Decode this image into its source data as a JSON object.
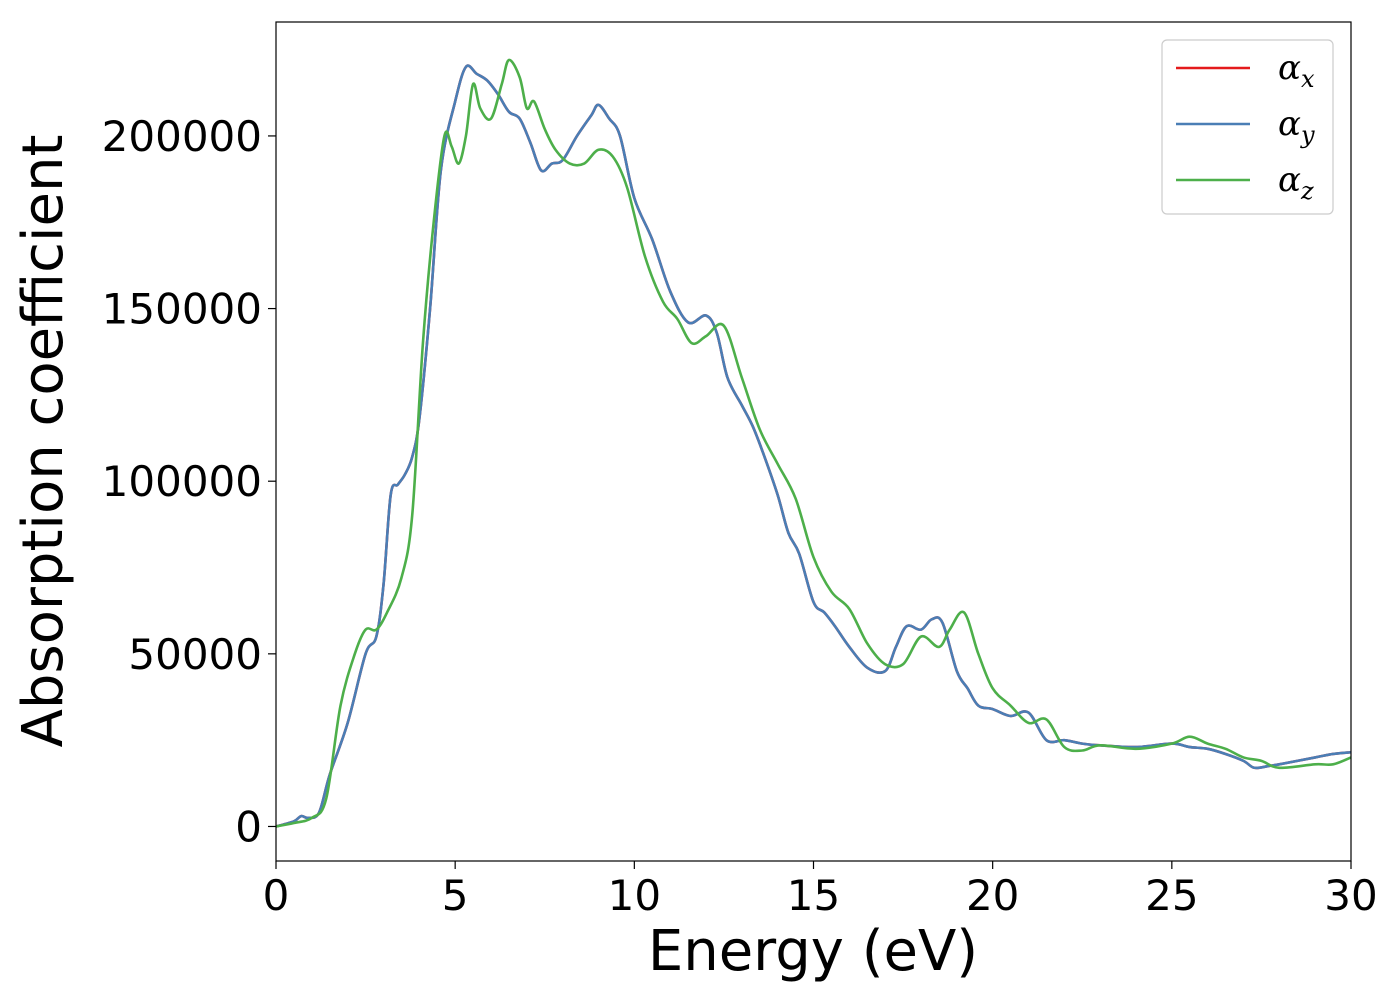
{
  "chart_data": {
    "type": "line",
    "title": "",
    "xlabel": "Energy (eV)",
    "ylabel": "Absorption coefficient",
    "xlim": [
      0,
      30
    ],
    "ylim": [
      -10000,
      233000
    ],
    "xticks": [
      0,
      5,
      10,
      15,
      20,
      25,
      30
    ],
    "yticks": [
      0,
      50000,
      100000,
      150000,
      200000
    ],
    "grid": false,
    "legend_position": "top-right",
    "series": [
      {
        "name": "α",
        "subscript": "x",
        "color": "#e41a1c",
        "x": [
          0,
          0.5,
          0.7,
          0.9,
          1.2,
          1.5,
          2.0,
          2.5,
          2.8,
          3.0,
          3.2,
          3.4,
          3.6,
          3.8,
          4.0,
          4.3,
          4.6,
          5.0,
          5.3,
          5.6,
          5.9,
          6.2,
          6.5,
          6.8,
          7.1,
          7.4,
          7.7,
          8.0,
          8.4,
          8.8,
          9.0,
          9.3,
          9.6,
          10.0,
          10.5,
          11.0,
          11.5,
          12.0,
          12.3,
          12.6,
          13.0,
          13.3,
          13.6,
          14.0,
          14.3,
          14.6,
          15.0,
          15.3,
          15.6,
          16.0,
          16.5,
          17.0,
          17.3,
          17.6,
          18.0,
          18.3,
          18.6,
          19.0,
          19.3,
          19.6,
          20.0,
          20.5,
          21.0,
          21.5,
          22.0,
          22.5,
          23.0,
          24.0,
          25.0,
          25.5,
          26.0,
          26.5,
          27.0,
          27.3,
          27.7,
          28.0,
          29.0,
          29.5,
          30.0
        ],
        "values": [
          0,
          1500,
          3000,
          2500,
          4000,
          15000,
          30000,
          50000,
          55000,
          70000,
          96000,
          99000,
          102000,
          107000,
          118000,
          150000,
          190000,
          210000,
          220000,
          218000,
          216000,
          212000,
          207000,
          205000,
          198000,
          190000,
          192000,
          193000,
          200000,
          206000,
          209000,
          205000,
          200000,
          182000,
          170000,
          155000,
          146000,
          148000,
          143000,
          130000,
          122000,
          116000,
          108000,
          96000,
          85000,
          79000,
          65000,
          62000,
          58000,
          52000,
          46000,
          45000,
          52000,
          58000,
          57000,
          60000,
          59000,
          45000,
          40000,
          35000,
          34000,
          32000,
          33000,
          25000,
          25000,
          24000,
          23500,
          23000,
          24000,
          23000,
          22500,
          21000,
          19000,
          17000,
          17500,
          18000,
          20000,
          21000,
          21500
        ]
      },
      {
        "name": "α",
        "subscript": "y",
        "color": "#4a7eb5",
        "x": [
          0,
          0.5,
          0.7,
          0.9,
          1.2,
          1.5,
          2.0,
          2.5,
          2.8,
          3.0,
          3.2,
          3.4,
          3.6,
          3.8,
          4.0,
          4.3,
          4.6,
          5.0,
          5.3,
          5.6,
          5.9,
          6.2,
          6.5,
          6.8,
          7.1,
          7.4,
          7.7,
          8.0,
          8.4,
          8.8,
          9.0,
          9.3,
          9.6,
          10.0,
          10.5,
          11.0,
          11.5,
          12.0,
          12.3,
          12.6,
          13.0,
          13.3,
          13.6,
          14.0,
          14.3,
          14.6,
          15.0,
          15.3,
          15.6,
          16.0,
          16.5,
          17.0,
          17.3,
          17.6,
          18.0,
          18.3,
          18.6,
          19.0,
          19.3,
          19.6,
          20.0,
          20.5,
          21.0,
          21.5,
          22.0,
          22.5,
          23.0,
          24.0,
          25.0,
          25.5,
          26.0,
          26.5,
          27.0,
          27.3,
          27.7,
          28.0,
          29.0,
          29.5,
          30.0
        ],
        "values": [
          0,
          1500,
          3000,
          2500,
          4000,
          15000,
          30000,
          50000,
          55000,
          70000,
          96000,
          99000,
          102000,
          107000,
          118000,
          150000,
          190000,
          210000,
          220000,
          218000,
          216000,
          212000,
          207000,
          205000,
          198000,
          190000,
          192000,
          193000,
          200000,
          206000,
          209000,
          205000,
          200000,
          182000,
          170000,
          155000,
          146000,
          148000,
          143000,
          130000,
          122000,
          116000,
          108000,
          96000,
          85000,
          79000,
          65000,
          62000,
          58000,
          52000,
          46000,
          45000,
          52000,
          58000,
          57000,
          60000,
          59000,
          45000,
          40000,
          35000,
          34000,
          32000,
          33000,
          25000,
          25000,
          24000,
          23500,
          23000,
          24000,
          23000,
          22500,
          21000,
          19000,
          17000,
          17500,
          18000,
          20000,
          21000,
          21500
        ]
      },
      {
        "name": "α",
        "subscript": "z",
        "color": "#4daf4a",
        "x": [
          0,
          0.5,
          1.0,
          1.4,
          1.8,
          2.2,
          2.5,
          2.8,
          3.1,
          3.5,
          3.8,
          4.1,
          4.4,
          4.7,
          4.9,
          5.1,
          5.3,
          5.5,
          5.7,
          6.0,
          6.3,
          6.5,
          6.8,
          7.0,
          7.2,
          7.5,
          7.8,
          8.2,
          8.6,
          9.0,
          9.4,
          9.8,
          10.3,
          10.8,
          11.2,
          11.6,
          12.0,
          12.5,
          13.0,
          13.5,
          14.0,
          14.5,
          15.0,
          15.5,
          16.0,
          16.5,
          17.0,
          17.5,
          18.0,
          18.5,
          18.8,
          19.2,
          19.6,
          20.0,
          20.5,
          21.0,
          21.5,
          22.0,
          22.5,
          23.0,
          24.0,
          25.0,
          25.5,
          26.0,
          26.5,
          27.0,
          27.5,
          28.0,
          29.0,
          29.5,
          30.0
        ],
        "values": [
          0,
          1000,
          2500,
          8000,
          35000,
          50000,
          57000,
          57000,
          62000,
          72000,
          90000,
          140000,
          175000,
          200000,
          197000,
          192000,
          200000,
          215000,
          208000,
          205000,
          215000,
          222000,
          217000,
          208000,
          210000,
          202000,
          196000,
          192000,
          192000,
          196000,
          194000,
          185000,
          165000,
          152000,
          147000,
          140000,
          142000,
          145000,
          130000,
          115000,
          105000,
          95000,
          78000,
          68000,
          63000,
          53000,
          47000,
          47000,
          55000,
          52000,
          57000,
          62000,
          50000,
          40000,
          35000,
          30000,
          31000,
          23000,
          22000,
          23500,
          22500,
          24000,
          26000,
          24000,
          22500,
          20000,
          19000,
          17000,
          18000,
          18000,
          20000
        ]
      }
    ]
  }
}
